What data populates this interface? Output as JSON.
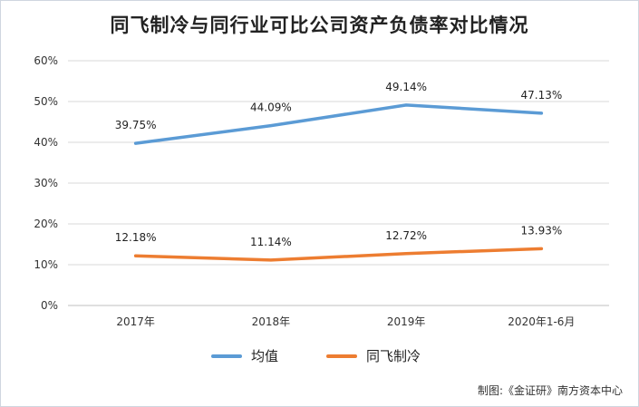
{
  "chart_data": {
    "type": "line",
    "title": "同飞制冷与同行业可比公司资产负债率对比情况",
    "categories": [
      "2017年",
      "2018年",
      "2019年",
      "2020年1-6月"
    ],
    "ylim": [
      0,
      60
    ],
    "yticks": [
      "0%",
      "10%",
      "20%",
      "30%",
      "40%",
      "50%",
      "60%"
    ],
    "grid": true,
    "legend_position": "bottom",
    "series": [
      {
        "name": "均值",
        "color": "#5b9bd5",
        "values": [
          39.75,
          44.09,
          49.14,
          47.13
        ],
        "labels": [
          "39.75%",
          "44.09%",
          "49.14%",
          "47.13%"
        ]
      },
      {
        "name": "同飞制冷",
        "color": "#ed7d31",
        "values": [
          12.18,
          11.14,
          12.72,
          13.93
        ],
        "labels": [
          "12.18%",
          "11.14%",
          "12.72%",
          "13.93%"
        ]
      }
    ],
    "source": "制图:《金证研》南方资本中心"
  }
}
